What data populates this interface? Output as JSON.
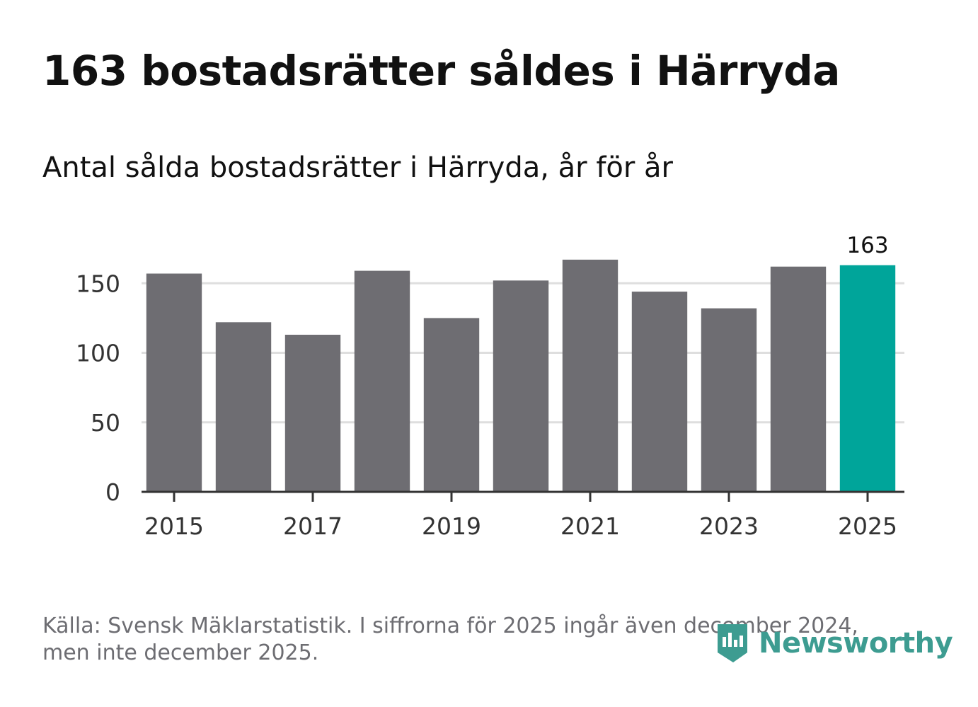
{
  "title": "163 bostadsrätter såldes i Härryda",
  "subtitle": "Antal sålda bostadsrätter i Härryda, år för år",
  "source": "Källa: Svensk Mäklarstatistik. I siffrorna för 2025 ingår även december 2024, men inte december 2025.",
  "brand": {
    "name": "Newsworthy",
    "color": "#3d9c91",
    "icon": "newsworthy-logo-icon"
  },
  "colors": {
    "bar": "#6e6d72",
    "highlight": "#00a59a",
    "grid": "#dedede",
    "axis": "#333333",
    "text": "#333333"
  },
  "chart_data": {
    "type": "bar",
    "title": "Antal sålda bostadsrätter i Härryda, år för år",
    "xlabel": "",
    "ylabel": "",
    "categories": [
      "2015",
      "2016",
      "2017",
      "2018",
      "2019",
      "2020",
      "2021",
      "2022",
      "2023",
      "2024",
      "2025"
    ],
    "values": [
      157,
      122,
      113,
      159,
      125,
      152,
      167,
      144,
      132,
      162,
      163
    ],
    "highlight_index": 10,
    "highlight_label": "163",
    "ylim": [
      0,
      170
    ],
    "yticks": [
      0,
      50,
      100,
      150
    ],
    "ytick_labels": [
      "0",
      "50",
      "100",
      "150"
    ],
    "xtick_labels": [
      "2015",
      "2017",
      "2019",
      "2021",
      "2023",
      "2025"
    ],
    "grid": true
  }
}
